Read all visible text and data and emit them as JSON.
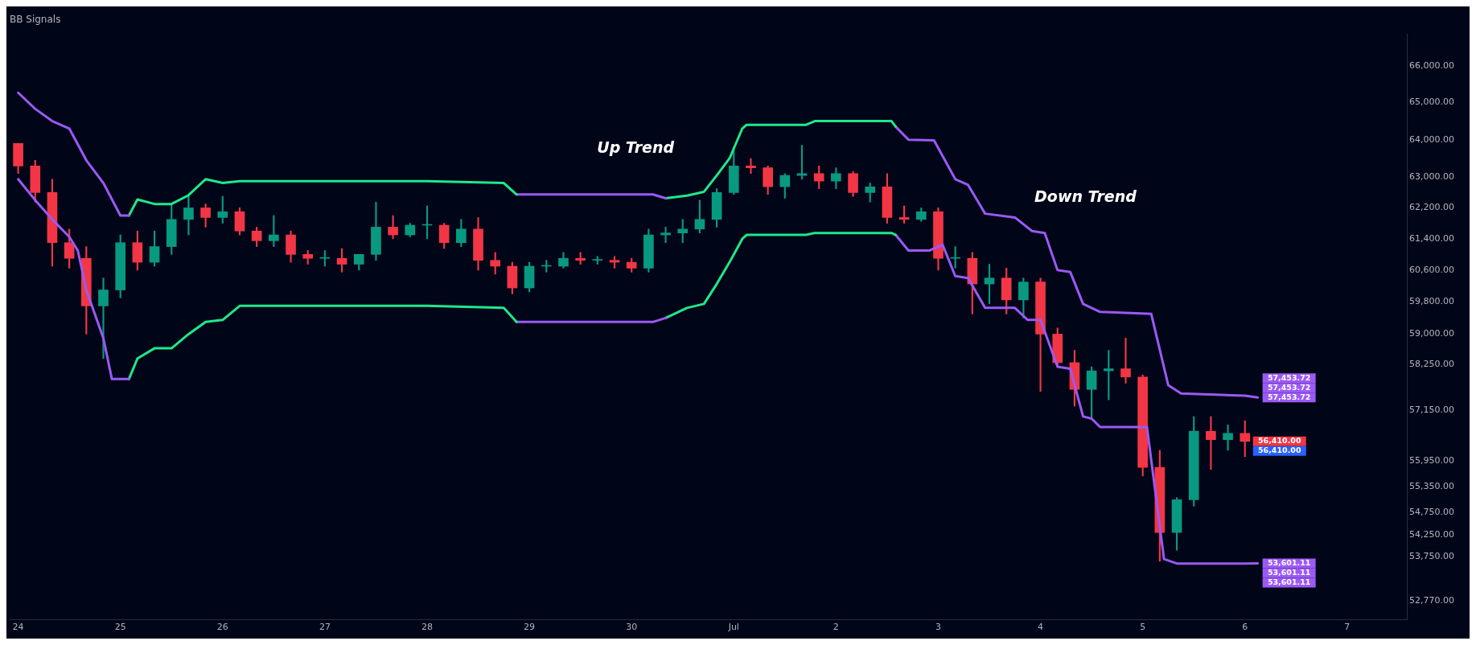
{
  "chart_data": {
    "type": "candlestick",
    "title": "BB Signals",
    "log": true,
    "ylim": [
      52350,
      66890
    ],
    "yticks": [
      {
        "value": 66000,
        "label": "66,000.00"
      },
      {
        "value": 65000,
        "label": "65,000.00"
      },
      {
        "value": 64000,
        "label": "64,000.00"
      },
      {
        "value": 63000,
        "label": "63,000.00"
      },
      {
        "value": 62200,
        "label": "62,200.00"
      },
      {
        "value": 61400,
        "label": "61,400.00"
      },
      {
        "value": 60600,
        "label": "60,600.00"
      },
      {
        "value": 59800,
        "label": "59,800.00"
      },
      {
        "value": 59000,
        "label": "59,000.00"
      },
      {
        "value": 58250,
        "label": "58,250.00"
      },
      {
        "value": 57150,
        "label": "57,150.00"
      },
      {
        "value": 55950,
        "label": "55,950.00"
      },
      {
        "value": 55350,
        "label": "55,350.00"
      },
      {
        "value": 54750,
        "label": "54,750.00"
      },
      {
        "value": 54250,
        "label": "54,250.00"
      },
      {
        "value": 53750,
        "label": "53,750.00"
      },
      {
        "value": 52770,
        "label": "52,770.00"
      }
    ],
    "xlim": [
      "--06-23T22:00",
      "--07-07T14:00"
    ],
    "xticks": [
      {
        "value": "--06-24",
        "label": "24"
      },
      {
        "value": "--06-25",
        "label": "25"
      },
      {
        "value": "--06-26",
        "label": "26"
      },
      {
        "value": "--06-27",
        "label": "27"
      },
      {
        "value": "--06-28",
        "label": "28"
      },
      {
        "value": "--06-29",
        "label": "29"
      },
      {
        "value": "--06-30",
        "label": "30"
      },
      {
        "value": "--07-01",
        "label": "Jul"
      },
      {
        "value": "--07-02",
        "label": "2"
      },
      {
        "value": "--07-03",
        "label": "3"
      },
      {
        "value": "--07-04",
        "label": "4"
      },
      {
        "value": "--07-05",
        "label": "5"
      },
      {
        "value": "--07-06",
        "label": "6"
      },
      {
        "value": "--07-07",
        "label": "7"
      }
    ],
    "x": [
      "--06-24T00:00",
      "--06-24T04:00",
      "--06-24T08:00",
      "--06-24T12:00",
      "--06-24T16:00",
      "--06-24T20:00",
      "--06-25T00:00",
      "--06-25T04:00",
      "--06-25T08:00",
      "--06-25T12:00",
      "--06-25T16:00",
      "--06-25T20:00",
      "--06-26T00:00",
      "--06-26T04:00",
      "--06-26T08:00",
      "--06-26T12:00",
      "--06-26T16:00",
      "--06-26T20:00",
      "--06-27T00:00",
      "--06-27T04:00",
      "--06-27T08:00",
      "--06-27T12:00",
      "--06-27T16:00",
      "--06-27T20:00",
      "--06-28T00:00",
      "--06-28T04:00",
      "--06-28T08:00",
      "--06-28T12:00",
      "--06-28T16:00",
      "--06-28T20:00",
      "--06-29T00:00",
      "--06-29T04:00",
      "--06-29T08:00",
      "--06-29T12:00",
      "--06-29T16:00",
      "--06-29T20:00",
      "--06-30T00:00",
      "--06-30T04:00",
      "--06-30T08:00",
      "--06-30T12:00",
      "--06-30T16:00",
      "--06-30T20:00",
      "--07-01T00:00",
      "--07-01T04:00",
      "--07-01T08:00",
      "--07-01T12:00",
      "--07-01T16:00",
      "--07-01T20:00",
      "--07-02T00:00",
      "--07-02T04:00",
      "--07-02T08:00",
      "--07-02T12:00",
      "--07-02T16:00",
      "--07-02T20:00",
      "--07-03T00:00",
      "--07-03T04:00",
      "--07-03T08:00",
      "--07-03T12:00",
      "--07-03T16:00",
      "--07-03T20:00",
      "--07-04T00:00",
      "--07-04T04:00",
      "--07-04T08:00",
      "--07-04T12:00",
      "--07-04T16:00",
      "--07-04T20:00",
      "--07-05T00:00",
      "--07-05T04:00",
      "--07-05T08:00",
      "--07-05T12:00",
      "--07-05T16:00",
      "--07-05T20:00",
      "--07-06T00:00"
    ],
    "ohlc": [
      [
        63900,
        63900,
        63100,
        63300
      ],
      [
        63300,
        63450,
        62350,
        62600
      ],
      [
        62600,
        62950,
        60700,
        61300
      ],
      [
        61300,
        61650,
        60650,
        60900
      ],
      [
        60900,
        61200,
        59000,
        59700
      ],
      [
        59700,
        60400,
        58400,
        60100
      ],
      [
        60100,
        61500,
        59900,
        61300
      ],
      [
        61300,
        61600,
        60600,
        60800
      ],
      [
        60800,
        61600,
        60700,
        61200
      ],
      [
        61200,
        62300,
        61000,
        61900
      ],
      [
        61900,
        62500,
        61500,
        62200
      ],
      [
        62200,
        62300,
        61700,
        61950
      ],
      [
        61950,
        62500,
        61800,
        62100
      ],
      [
        62100,
        62200,
        61500,
        61600
      ],
      [
        61600,
        61700,
        61200,
        61350
      ],
      [
        61350,
        62000,
        61200,
        61500
      ],
      [
        61500,
        61600,
        60800,
        61000
      ],
      [
        61000,
        61100,
        60750,
        60900
      ],
      [
        60900,
        61100,
        60700,
        60900
      ],
      [
        60900,
        61150,
        60550,
        60750
      ],
      [
        60750,
        61000,
        60600,
        61000
      ],
      [
        61000,
        62350,
        60850,
        61700
      ],
      [
        61700,
        62000,
        61400,
        61500
      ],
      [
        61500,
        61800,
        61450,
        61750
      ],
      [
        61750,
        62250,
        61400,
        61750
      ],
      [
        61750,
        61800,
        61150,
        61300
      ],
      [
        61300,
        61900,
        61200,
        61650
      ],
      [
        61650,
        61950,
        60600,
        60850
      ],
      [
        60850,
        61050,
        60500,
        60700
      ],
      [
        60700,
        60800,
        60000,
        60150
      ],
      [
        60150,
        60800,
        60050,
        60700
      ],
      [
        60700,
        60850,
        60550,
        60700
      ],
      [
        60700,
        61050,
        60650,
        60900
      ],
      [
        60900,
        61050,
        60750,
        60850
      ],
      [
        60850,
        60950,
        60750,
        60850
      ],
      [
        60850,
        60950,
        60650,
        60800
      ],
      [
        60800,
        60900,
        60550,
        60650
      ],
      [
        60650,
        61650,
        60550,
        61500
      ],
      [
        61500,
        61700,
        61300,
        61550
      ],
      [
        61550,
        61900,
        61300,
        61650
      ],
      [
        61650,
        62400,
        61550,
        61900
      ],
      [
        61900,
        62700,
        61700,
        62600
      ],
      [
        62600,
        63800,
        62550,
        63300
      ],
      [
        63300,
        63500,
        63100,
        63250
      ],
      [
        63250,
        63300,
        62550,
        62750
      ],
      [
        62750,
        63100,
        62450,
        63050
      ],
      [
        63050,
        63850,
        62950,
        63100
      ],
      [
        63100,
        63300,
        62700,
        62900
      ],
      [
        62900,
        63250,
        62700,
        63100
      ],
      [
        63100,
        63150,
        62500,
        62600
      ],
      [
        62600,
        62850,
        62350,
        62750
      ],
      [
        62750,
        63100,
        61800,
        61950
      ],
      [
        61950,
        62250,
        61800,
        61900
      ],
      [
        61900,
        62200,
        61850,
        62100
      ],
      [
        62100,
        62200,
        60600,
        60900
      ],
      [
        60900,
        61200,
        60650,
        60900
      ],
      [
        60900,
        61050,
        59500,
        60250
      ],
      [
        60250,
        60750,
        59750,
        60400
      ],
      [
        60400,
        60650,
        59500,
        59850
      ],
      [
        59850,
        60400,
        59400,
        60300
      ],
      [
        60300,
        60400,
        57600,
        59000
      ],
      [
        59000,
        59150,
        58200,
        58300
      ],
      [
        58300,
        58600,
        57250,
        57650
      ],
      [
        57650,
        58200,
        56950,
        58100
      ],
      [
        58100,
        58600,
        57400,
        58150
      ],
      [
        58150,
        58900,
        57800,
        57950
      ],
      [
        57950,
        58000,
        55600,
        55800
      ],
      [
        55800,
        56200,
        53650,
        54300
      ],
      [
        54300,
        55100,
        53900,
        55050
      ],
      [
        55050,
        57000,
        54900,
        56650
      ],
      [
        56650,
        57000,
        55750,
        56450
      ],
      [
        56450,
        56800,
        56200,
        56600
      ],
      [
        56600,
        56900,
        56050,
        56410
      ]
    ],
    "value_labels": [
      null,
      null,
      null,
      null,
      null,
      null,
      null,
      null,
      null,
      null,
      null,
      null,
      null,
      null,
      null,
      null,
      null,
      null,
      null,
      null,
      null,
      null,
      null,
      null,
      null,
      null,
      null,
      null,
      null,
      null,
      null,
      null,
      null,
      null,
      null,
      null,
      null,
      null,
      null,
      null,
      null,
      null,
      null,
      null,
      null,
      null,
      null,
      null,
      null,
      null,
      null,
      null,
      null,
      null,
      null,
      null,
      null,
      null,
      null,
      null,
      null,
      null,
      null,
      null,
      null,
      null,
      null,
      null,
      null,
      null,
      null,
      null,
      "56,410.00"
    ],
    "series": [
      {
        "type": "line",
        "color": "#9b59f5",
        "x": [
          "--06-24T00:00",
          "--06-24T04:00",
          "--06-24T08:00",
          "--06-24T12:00",
          "--06-24T16:00",
          "--06-24T20:00",
          "--06-25T00:00",
          "--06-25T02:00"
        ],
        "values": [
          65270,
          64830,
          64500,
          64300,
          63450,
          62850,
          62000,
          62000
        ]
      },
      {
        "type": "line",
        "color": "#1de98b",
        "x": [
          "--06-25T02:00",
          "--06-25T04:00",
          "--06-25T08:00",
          "--06-25T12:00",
          "--06-25T16:00",
          "--06-25T20:00",
          "--06-26T00:00",
          "--06-26T04:00",
          "--06-28T00:00",
          "--06-28T18:00",
          "--06-28T21:00"
        ],
        "values": [
          62000,
          62420,
          62300,
          62300,
          62530,
          62950,
          62850,
          62900,
          62900,
          62850,
          62550
        ]
      },
      {
        "type": "line",
        "color": "#9b59f5",
        "x": [
          "--06-28T21:00",
          "--06-30T05:00",
          "--06-30T08:00"
        ],
        "values": [
          62550,
          62550,
          62450
        ]
      },
      {
        "type": "line",
        "color": "#1de98b",
        "x": [
          "--06-30T08:00",
          "--06-30T13:00",
          "--06-30T17:00",
          "--06-30T20:00",
          "--06-30T23:00",
          "--07-01T02:00",
          "--07-01T03:00",
          "--07-01T17:00",
          "--07-01T19:00",
          "--07-02T13:00",
          "--07-02T14:00"
        ],
        "values": [
          62450,
          62520,
          62620,
          63050,
          63500,
          64300,
          64400,
          64400,
          64500,
          64500,
          64350
        ]
      },
      {
        "type": "line",
        "color": "#9b59f5",
        "x": [
          "--07-02T14:00",
          "--07-02T17:00",
          "--07-02T23:00",
          "--07-03T04:00",
          "--07-03T07:00",
          "--07-03T11:00",
          "--07-03T18:00",
          "--07-03T22:00",
          "--07-04T01:00",
          "--07-04T04:00",
          "--07-04T07:00",
          "--07-04T10:00",
          "--07-04T14:00",
          "--07-05T02:00",
          "--07-05T06:00",
          "--07-05T09:00",
          "--07-06T00:00",
          "--07-06T03:00"
        ],
        "values": [
          64350,
          64000,
          63980,
          62950,
          62800,
          62050,
          61950,
          61600,
          61550,
          60600,
          60550,
          59750,
          59550,
          59500,
          57750,
          57550,
          57500,
          57453.72
        ],
        "value_labels": [
          null,
          null,
          null,
          null,
          null,
          null,
          null,
          null,
          null,
          null,
          null,
          null,
          null,
          null,
          null,
          null,
          null,
          "57,453.72"
        ]
      },
      {
        "type": "line",
        "color": "#9b59f5",
        "x": [
          "--06-24T00:00",
          "--06-24T04:00",
          "--06-24T08:00",
          "--06-24T12:00",
          "--06-24T14:00",
          "--06-24T16:00",
          "--06-24T20:00",
          "--06-24T22:00",
          "--06-25T02:00"
        ],
        "values": [
          62950,
          62400,
          61900,
          61450,
          61100,
          60100,
          58900,
          57900,
          57900
        ]
      },
      {
        "type": "line",
        "color": "#1de98b",
        "x": [
          "--06-25T02:00",
          "--06-25T04:00",
          "--06-25T08:00",
          "--06-25T12:00",
          "--06-25T16:00",
          "--06-25T20:00",
          "--06-26T00:00",
          "--06-26T04:00",
          "--06-28T00:00",
          "--06-28T18:00",
          "--06-28T21:00"
        ],
        "values": [
          57900,
          58400,
          58650,
          58650,
          59000,
          59300,
          59350,
          59700,
          59700,
          59650,
          59300
        ]
      },
      {
        "type": "line",
        "color": "#9b59f5",
        "x": [
          "--06-28T21:00",
          "--06-30T05:00",
          "--06-30T08:00"
        ],
        "values": [
          59300,
          59300,
          59400
        ]
      },
      {
        "type": "line",
        "color": "#1de98b",
        "x": [
          "--06-30T08:00",
          "--06-30T13:00",
          "--06-30T17:00",
          "--06-30T20:00",
          "--06-30T23:00",
          "--07-01T02:00",
          "--07-01T03:00",
          "--07-01T17:00",
          "--07-01T19:00",
          "--07-02T13:00",
          "--07-02T14:00"
        ],
        "values": [
          59400,
          59650,
          59750,
          60250,
          60800,
          61400,
          61500,
          61500,
          61550,
          61550,
          61500
        ]
      },
      {
        "type": "line",
        "color": "#9b59f5",
        "x": [
          "--07-02T14:00",
          "--07-02T17:00",
          "--07-02T22:00",
          "--07-03T01:00",
          "--07-03T04:00",
          "--07-03T07:00",
          "--07-03T11:00",
          "--07-03T18:00",
          "--07-03T21:00",
          "--07-04T00:00",
          "--07-04T04:00",
          "--07-04T07:00",
          "--07-04T10:00",
          "--07-04T12:00",
          "--07-04T14:00",
          "--07-05T01:00",
          "--07-05T05:00",
          "--07-05T08:00",
          "--07-06T00:00",
          "--07-06T03:00"
        ],
        "values": [
          61500,
          61100,
          61100,
          61250,
          60450,
          60400,
          59650,
          59650,
          59350,
          59350,
          58200,
          58150,
          57000,
          56950,
          56750,
          56750,
          53700,
          53600,
          53600,
          53601.11
        ],
        "value_labels": [
          null,
          null,
          null,
          null,
          null,
          null,
          null,
          null,
          null,
          null,
          null,
          null,
          null,
          null,
          null,
          null,
          null,
          null,
          null,
          "53,601.11"
        ]
      }
    ],
    "annotations": [
      "Up Trend",
      "Down Trend",
      "57,453.72",
      "57,453.72",
      "56,410.00",
      "53,601.11",
      "53,601.11"
    ]
  }
}
